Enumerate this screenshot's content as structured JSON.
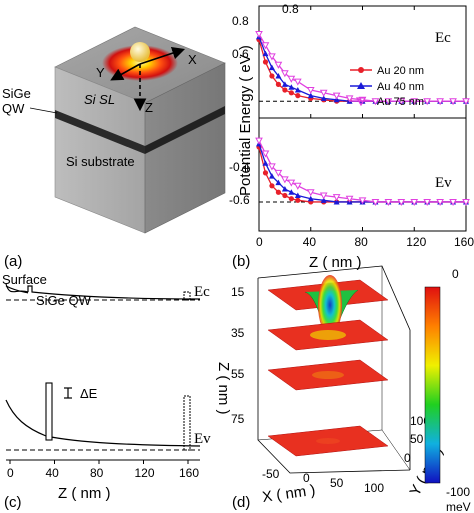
{
  "panel_a": {
    "label": "(a)",
    "layers": {
      "qw": "SiGe\nQW",
      "qw_line1": "SiGe",
      "qw_line2": "QW",
      "sl": "Si SL",
      "substrate": "Si substrate"
    },
    "axes": {
      "x": "X",
      "y": "Y",
      "z": "Z"
    }
  },
  "panel_b": {
    "label": "(b)",
    "ylabel": "Potential Energy ( eV )",
    "xlabel": "Z ( nm )",
    "ec_label": "Ec",
    "ev_label": "Ev",
    "x_ticks": [
      "0",
      "40",
      "80",
      "120",
      "160"
    ],
    "y_ticks_top": [
      "0.8",
      "0.6"
    ],
    "y_ticks_bottom": [
      "-0.4",
      "-0.6"
    ],
    "y_tick_top_axis": "0.8",
    "legend": [
      "Au 20 nm",
      "Au 40 nm",
      "Au 75 nm"
    ],
    "colors": [
      "#e8202a",
      "#1a1ad8",
      "#e040e0"
    ]
  },
  "panel_c": {
    "label": "(c)",
    "surface": "Surface",
    "qw": "SiGe QW",
    "ec": "Ec",
    "ev": "Ev",
    "delta_e": "ΔE",
    "xlabel": "Z ( nm )",
    "x_ticks": [
      "0",
      "40",
      "80",
      "120",
      "160"
    ]
  },
  "panel_d": {
    "label": "(d)",
    "zlabel": "Z ( nm )",
    "xlabel": "X ( nm )",
    "ylabel": "Y ( nm )",
    "z_ticks": [
      "15",
      "35",
      "55",
      "75"
    ],
    "x_ticks": [
      "-50",
      "0",
      "50",
      "100"
    ],
    "y_ticks": [
      "0",
      "50",
      "100"
    ],
    "colorbar_top": "0",
    "colorbar_bottom": "-100",
    "colorbar_unit": "meV"
  },
  "chart_data": [
    {
      "type": "line",
      "title": "",
      "xlabel": "Z ( nm )",
      "ylabel": "Potential Energy ( eV )",
      "xlim": [
        0,
        160
      ],
      "ylim": [
        -0.6,
        0.9
      ],
      "x": [
        0,
        5,
        10,
        15,
        20,
        25,
        30,
        40,
        50,
        60,
        70,
        80,
        90,
        100,
        110,
        120,
        130,
        140,
        150,
        160
      ],
      "series": [
        {
          "name": "Au 20 nm",
          "band": "Ec",
          "values": [
            0.78,
            0.7,
            0.65,
            0.62,
            0.6,
            0.59,
            0.58,
            0.57,
            0.565,
            0.56,
            0.56,
            0.56,
            0.56,
            0.56,
            0.56,
            0.56,
            0.56,
            0.56,
            0.56,
            0.56
          ]
        },
        {
          "name": "Au 40 nm",
          "band": "Ec",
          "values": [
            0.79,
            0.73,
            0.68,
            0.65,
            0.62,
            0.61,
            0.6,
            0.58,
            0.57,
            0.565,
            0.56,
            0.56,
            0.56,
            0.56,
            0.56,
            0.56,
            0.56,
            0.56,
            0.56,
            0.56
          ]
        },
        {
          "name": "Au 75 nm",
          "band": "Ec",
          "values": [
            0.8,
            0.76,
            0.72,
            0.69,
            0.66,
            0.64,
            0.63,
            0.6,
            0.59,
            0.58,
            0.57,
            0.565,
            0.56,
            0.56,
            0.56,
            0.56,
            0.56,
            0.56,
            0.56,
            0.56
          ]
        },
        {
          "name": "Au 20 nm",
          "band": "Ev",
          "values": [
            -0.39,
            -0.47,
            -0.51,
            -0.53,
            -0.54,
            -0.55,
            -0.555,
            -0.56,
            -0.56,
            -0.56,
            -0.56,
            -0.56,
            -0.56,
            -0.56,
            -0.56,
            -0.56,
            -0.56,
            -0.56,
            -0.56,
            -0.56
          ]
        },
        {
          "name": "Au 40 nm",
          "band": "Ev",
          "values": [
            -0.38,
            -0.44,
            -0.48,
            -0.5,
            -0.52,
            -0.53,
            -0.54,
            -0.55,
            -0.555,
            -0.56,
            -0.56,
            -0.56,
            -0.56,
            -0.56,
            -0.56,
            -0.56,
            -0.56,
            -0.56,
            -0.56,
            -0.56
          ]
        },
        {
          "name": "Au 75 nm",
          "band": "Ev",
          "values": [
            -0.37,
            -0.41,
            -0.45,
            -0.47,
            -0.49,
            -0.5,
            -0.51,
            -0.53,
            -0.54,
            -0.545,
            -0.55,
            -0.555,
            -0.56,
            -0.56,
            -0.56,
            -0.56,
            -0.56,
            -0.56,
            -0.56,
            -0.56
          ]
        }
      ],
      "reference_lines": [
        0.56,
        -0.56
      ],
      "legend_position": "center-right",
      "grid": false
    }
  ]
}
